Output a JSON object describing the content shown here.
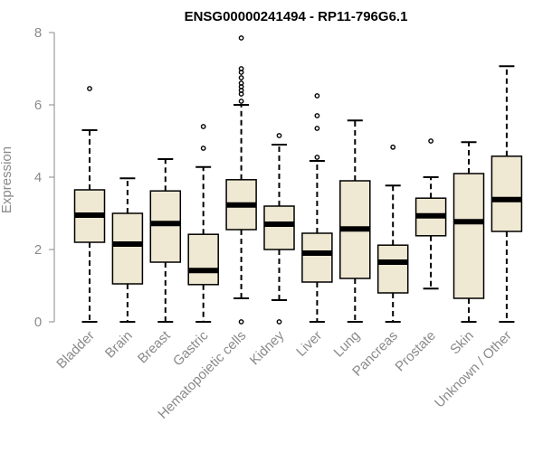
{
  "chart_data": {
    "type": "boxplot",
    "title": "ENSG00000241494 - RP11-796G6.1",
    "xlabel": "",
    "ylabel": "Expression",
    "ylim": [
      0,
      8
    ],
    "yticks": [
      0,
      2,
      4,
      6,
      8
    ],
    "box_fill": "#efe8d2",
    "box_stroke": "#000000",
    "axis_color": "#8a8a8a",
    "categories": [
      "Bladder",
      "Brain",
      "Breast",
      "Gastric",
      "Hematopoietic cells",
      "Kidney",
      "Liver",
      "Lung",
      "Pancreas",
      "Prostate",
      "Skin",
      "Unknown / Other"
    ],
    "boxes": [
      {
        "whisker_low": 0,
        "q1": 2.2,
        "median": 2.95,
        "q3": 3.65,
        "whisker_high": 5.3,
        "outliers": [
          6.45
        ]
      },
      {
        "whisker_low": 0,
        "q1": 1.05,
        "median": 2.15,
        "q3": 3.0,
        "whisker_high": 3.97,
        "outliers": []
      },
      {
        "whisker_low": 0,
        "q1": 1.65,
        "median": 2.72,
        "q3": 3.62,
        "whisker_high": 4.5,
        "outliers": []
      },
      {
        "whisker_low": 0,
        "q1": 1.03,
        "median": 1.42,
        "q3": 2.42,
        "whisker_high": 4.28,
        "outliers": [
          4.8,
          5.4
        ]
      },
      {
        "whisker_low": 0.65,
        "q1": 2.55,
        "median": 3.23,
        "q3": 3.93,
        "whisker_high": 6.0,
        "outliers": [
          0.0,
          6.1,
          6.3,
          6.4,
          6.5,
          6.6,
          6.75,
          6.9,
          7.0,
          7.85
        ]
      },
      {
        "whisker_low": 0.6,
        "q1": 2.0,
        "median": 2.7,
        "q3": 3.2,
        "whisker_high": 4.9,
        "outliers": [
          0.0,
          5.15
        ]
      },
      {
        "whisker_low": 0,
        "q1": 1.1,
        "median": 1.9,
        "q3": 2.45,
        "whisker_high": 4.45,
        "outliers": [
          4.55,
          5.35,
          5.7,
          6.25
        ]
      },
      {
        "whisker_low": 0,
        "q1": 1.2,
        "median": 2.57,
        "q3": 3.9,
        "whisker_high": 5.57,
        "outliers": []
      },
      {
        "whisker_low": 0,
        "q1": 0.8,
        "median": 1.65,
        "q3": 2.12,
        "whisker_high": 3.77,
        "outliers": [
          4.83
        ]
      },
      {
        "whisker_low": 0.92,
        "q1": 2.38,
        "median": 2.93,
        "q3": 3.42,
        "whisker_high": 4.0,
        "outliers": [
          5.0
        ]
      },
      {
        "whisker_low": 0,
        "q1": 0.65,
        "median": 2.77,
        "q3": 4.1,
        "whisker_high": 4.97,
        "outliers": []
      },
      {
        "whisker_low": 0,
        "q1": 2.5,
        "median": 3.38,
        "q3": 4.58,
        "whisker_high": 7.07,
        "outliers": []
      }
    ]
  }
}
